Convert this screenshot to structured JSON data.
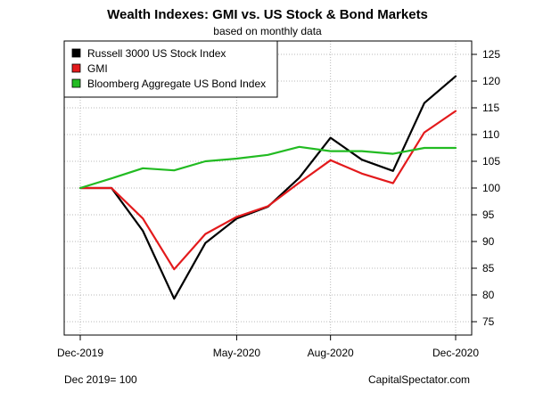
{
  "chart_data": {
    "type": "line",
    "title": "Wealth Indexes: GMI vs. US Stock & Bond Markets",
    "subtitle": "based on monthly data",
    "x": [
      "Dec-2019",
      "Jan-2020",
      "Feb-2020",
      "Mar-2020",
      "Apr-2020",
      "May-2020",
      "Jun-2020",
      "Jul-2020",
      "Aug-2020",
      "Sep-2020",
      "Oct-2020",
      "Nov-2020",
      "Dec-2020"
    ],
    "x_tick_labels": [
      "Dec-2019",
      "May-2020",
      "Aug-2020",
      "Dec-2020"
    ],
    "y_ticks": [
      75,
      80,
      85,
      90,
      95,
      100,
      105,
      110,
      115,
      120,
      125
    ],
    "ylim": [
      72.5,
      127.5
    ],
    "y_axis_side": "right",
    "grid": true,
    "legend_position": "top-left",
    "series": [
      {
        "name": "Russell 3000 US Stock Index",
        "color": "#000000",
        "values": [
          100,
          100,
          92,
          79.3,
          89.7,
          94.3,
          96.5,
          101.9,
          109.4,
          105.3,
          103.2,
          115.9,
          120.9
        ]
      },
      {
        "name": "GMI",
        "color": "#e31a1c",
        "values": [
          100,
          100,
          94.3,
          84.8,
          91.4,
          94.6,
          96.6,
          101.0,
          105.2,
          102.7,
          100.9,
          110.4,
          114.4
        ]
      },
      {
        "name": "Bloomberg Aggregate US Bond Index",
        "color": "#22bb22",
        "values": [
          100,
          101.8,
          103.7,
          103.3,
          105.0,
          105.5,
          106.2,
          107.7,
          106.9,
          106.9,
          106.4,
          107.5,
          107.5
        ]
      }
    ]
  },
  "notes": {
    "base": "Dec 2019= 100",
    "source": "CapitalSpectator.com"
  }
}
